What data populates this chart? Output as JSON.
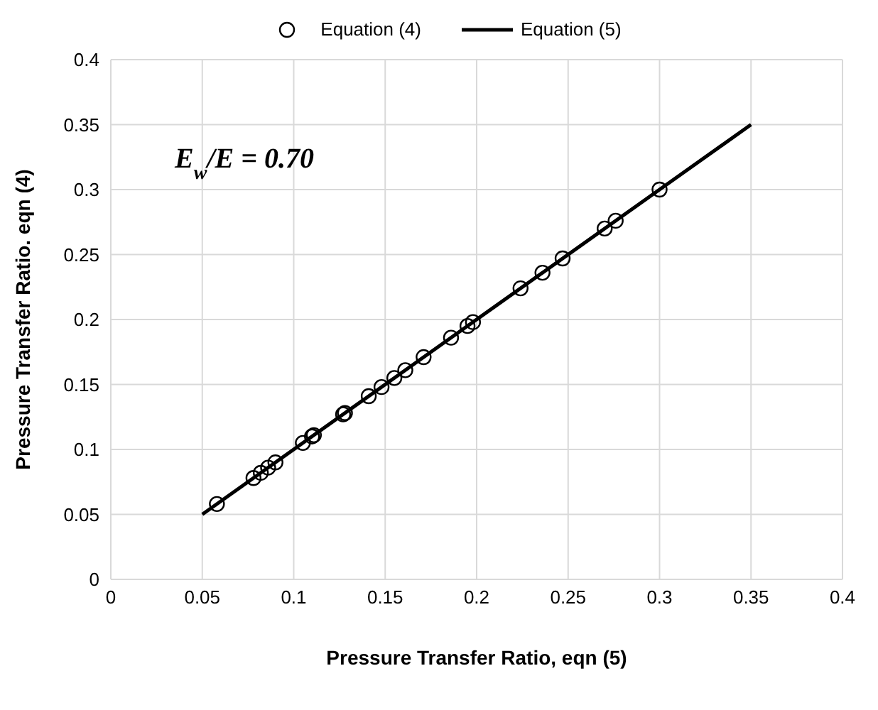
{
  "chart_data": {
    "type": "scatter",
    "xlabel": "Pressure Transfer Ratio, eqn (5)",
    "ylabel": "Pressure Transfer Ratio. eqn (4)",
    "annotations": [
      "E$_{w}$/E = 0.70"
    ],
    "xlim": [
      0,
      0.4
    ],
    "ylim": [
      0,
      0.4
    ],
    "xticks": [
      0,
      0.05,
      0.1,
      0.15,
      0.2,
      0.25,
      0.3,
      0.35,
      0.4
    ],
    "yticks": [
      0,
      0.05,
      0.1,
      0.15,
      0.2,
      0.25,
      0.3,
      0.35,
      0.4
    ],
    "grid": true,
    "legend": "top",
    "series": [
      {
        "name": "Equation (4)",
        "marker": "circle",
        "color": "#000000",
        "x": [
          0.058,
          0.078,
          0.082,
          0.086,
          0.09,
          0.105,
          0.11,
          0.111,
          0.127,
          0.128,
          0.141,
          0.148,
          0.155,
          0.161,
          0.171,
          0.186,
          0.195,
          0.198,
          0.224,
          0.236,
          0.247,
          0.27,
          0.276,
          0.3
        ],
        "values": [
          0.058,
          0.078,
          0.082,
          0.086,
          0.09,
          0.105,
          0.11,
          0.111,
          0.127,
          0.128,
          0.141,
          0.148,
          0.155,
          0.161,
          0.171,
          0.186,
          0.195,
          0.198,
          0.224,
          0.236,
          0.247,
          0.27,
          0.276,
          0.3
        ]
      },
      {
        "name": "Equation (5)",
        "type": "line",
        "marker": "none",
        "line_style": "solid",
        "color": "#000000",
        "x": [
          0.05,
          0.35
        ],
        "values": [
          0.05,
          0.35
        ]
      }
    ]
  }
}
